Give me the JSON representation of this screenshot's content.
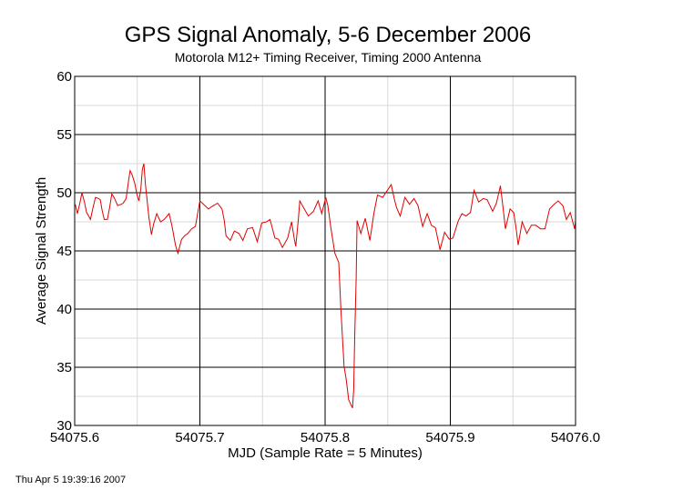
{
  "chart_data": {
    "type": "line",
    "title": "GPS Signal Anomaly, 5-6 December 2006",
    "subtitle": "Motorola M12+ Timing Receiver, Timing 2000 Antenna",
    "xlabel": "MJD (Sample Rate = 5 Minutes)",
    "ylabel": "Average Signal Strength",
    "xlim": [
      54075.6,
      54076.0
    ],
    "ylim": [
      30,
      60
    ],
    "x_ticks": [
      54075.6,
      54075.7,
      54075.8,
      54075.9,
      54076.0
    ],
    "x_tick_labels": [
      "54075.6",
      "54075.7",
      "54075.8",
      "54075.9",
      "54076.0"
    ],
    "y_ticks": [
      30,
      35,
      40,
      45,
      50,
      55,
      60
    ],
    "y_tick_labels": [
      "30",
      "35",
      "40",
      "45",
      "50",
      "55",
      "60"
    ],
    "x_minor_grid": [
      54075.65,
      54075.75,
      54075.85,
      54075.95
    ],
    "y_minor_grid": [
      32.5,
      37.5,
      42.5,
      47.5,
      52.5,
      57.5
    ],
    "grid": true,
    "colors": {
      "line": "#e00000",
      "major_grid": "#000000",
      "minor_grid": "#d9d9d9"
    },
    "series": [
      {
        "name": "Average Signal Strength",
        "x": [
          54075.6005,
          54075.6022,
          54075.6039,
          54075.6058,
          54075.6078,
          54075.6095,
          54075.6112,
          54075.6126,
          54075.6146,
          54075.6166,
          54075.6192,
          54075.6204,
          54075.6219,
          54075.6236,
          54075.6261,
          54075.6277,
          54075.6297,
          54075.6314,
          54075.6343,
          54075.637,
          54075.6387,
          54075.6411,
          54075.6431,
          54075.6443,
          54075.646,
          54075.648,
          54075.6496,
          54075.6513,
          54075.6528,
          54075.654,
          54075.6553,
          54075.6564,
          54075.6582,
          54075.6593,
          54075.6613,
          54075.663,
          54075.6655,
          54075.6686,
          54075.6715,
          54075.6754,
          54075.6776,
          54075.6805,
          54075.6825,
          54075.6854,
          54075.6878,
          54075.6903,
          54075.6934,
          54075.6964,
          54075.6983,
          54075.7,
          54075.702,
          54075.7068,
          54075.7093,
          54075.7141,
          54075.7177,
          54075.7195,
          54075.7209,
          54075.7243,
          54075.7275,
          54075.7312,
          54075.7343,
          54075.738,
          54075.7421,
          54075.7458,
          54075.7494,
          54075.7531,
          54075.756,
          54075.7599,
          54075.7628,
          54075.7659,
          54075.7701,
          54075.7732,
          54075.7754,
          54075.7766,
          54075.7786,
          54075.7798,
          54075.7834,
          54075.7866,
          54075.7907,
          54075.7944,
          54075.7973,
          54075.8005,
          54075.8022,
          54075.8046,
          54075.8078,
          54075.8109,
          54075.8126,
          54075.8151,
          54075.8168,
          54075.8188,
          54075.8219,
          54075.8228,
          54075.8236,
          54075.8248,
          54075.8255,
          54075.8285,
          54075.8321,
          54075.8358,
          54075.8389,
          54075.8418,
          54075.846,
          54075.8491,
          54075.8528,
          54075.8552,
          54075.8571,
          54075.86,
          54075.8637,
          54075.8674,
          54075.871,
          54075.8742,
          54075.8779,
          54075.8815,
          54075.8849,
          54075.8881,
          54075.8918,
          54075.8954,
          54075.8991,
          54075.902,
          54075.9064,
          54075.9093,
          54075.9124,
          54075.9161,
          54075.919,
          54075.9226,
          54075.9263,
          54075.9294,
          54075.9338,
          54075.9368,
          54075.94,
          54075.9421,
          54075.944,
          54075.9477,
          54075.9506,
          54075.9526,
          54075.9542,
          54075.9574,
          54075.9611,
          54075.9647,
          54075.9683,
          54075.972,
          54075.9756,
          54075.9793,
          54075.9829,
          54075.9861,
          54075.9898,
          54075.9927,
          54075.9958,
          54075.9993,
          54076.0
        ],
        "y": [
          49.0,
          48.2,
          49.0,
          50.0,
          49.2,
          48.3,
          48.0,
          47.7,
          48.7,
          49.6,
          49.5,
          49.4,
          48.5,
          47.7,
          47.7,
          48.6,
          49.9,
          49.6,
          48.9,
          49.0,
          49.1,
          49.5,
          51.1,
          51.9,
          51.5,
          50.8,
          49.9,
          49.3,
          50.3,
          52.0,
          52.5,
          50.8,
          49.0,
          47.9,
          46.4,
          47.3,
          48.2,
          47.5,
          47.7,
          48.2,
          47.2,
          45.5,
          44.8,
          46.0,
          46.3,
          46.5,
          46.9,
          47.1,
          48.3,
          49.3,
          49.1,
          48.6,
          48.8,
          49.1,
          48.6,
          47.6,
          46.3,
          45.9,
          46.7,
          46.5,
          45.9,
          46.9,
          47.0,
          45.8,
          47.4,
          47.5,
          47.7,
          46.1,
          46.0,
          45.3,
          46.1,
          47.5,
          46.0,
          45.4,
          47.7,
          49.3,
          48.6,
          48.0,
          48.4,
          49.3,
          48.2,
          49.6,
          48.9,
          47.0,
          44.8,
          44.0,
          40.0,
          35.1,
          34.0,
          32.2,
          31.5,
          33.1,
          37.6,
          42.6,
          47.6,
          46.5,
          47.8,
          45.9,
          48.2,
          49.8,
          49.6,
          50.1,
          50.7,
          49.5,
          48.7,
          48.0,
          49.6,
          49.0,
          49.5,
          48.9,
          47.1,
          48.2,
          47.2,
          47.0,
          45.1,
          46.6,
          46.0,
          46.1,
          47.6,
          48.2,
          48.0,
          48.3,
          50.2,
          49.2,
          49.5,
          49.4,
          48.4,
          49.1,
          50.6,
          48.7,
          46.9,
          48.6,
          48.3,
          46.9,
          45.5,
          47.5,
          46.5,
          47.2,
          47.2,
          46.9,
          46.9,
          48.6,
          49.0,
          49.3,
          48.9,
          47.7,
          48.3,
          46.9,
          47.6
        ]
      }
    ]
  },
  "footer": {
    "timestamp": "Thu Apr  5 19:39:16 2007"
  }
}
